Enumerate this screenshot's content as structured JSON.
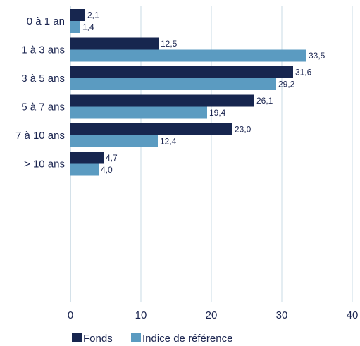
{
  "chart_data": {
    "type": "bar",
    "orientation": "horizontal",
    "categories": [
      "0 à 1 an",
      "1 à 3 ans",
      "3 à 5 ans",
      "5 à 7 ans",
      "7 à 10 ans",
      "> 10 ans"
    ],
    "series": [
      {
        "name": "Fonds",
        "color": "#17264f",
        "values": [
          2.1,
          12.5,
          31.6,
          26.1,
          23.0,
          4.7
        ],
        "labels": [
          "2,1",
          "12,5",
          "31,6",
          "26,1",
          "23,0",
          "4,7"
        ]
      },
      {
        "name": "Indice de référence",
        "color": "#5b9bc1",
        "values": [
          1.4,
          33.5,
          29.2,
          19.4,
          12.4,
          4.0
        ],
        "labels": [
          "1,4",
          "33,5",
          "29,2",
          "19,4",
          "12,4",
          "4,0"
        ]
      }
    ],
    "xlim": [
      0,
      40
    ],
    "x_ticks": [
      0,
      10,
      20,
      30,
      40
    ],
    "x_tick_labels": [
      "0",
      "10",
      "20",
      "30",
      "40"
    ],
    "grid": "vertical",
    "legend": "bottom-center"
  }
}
